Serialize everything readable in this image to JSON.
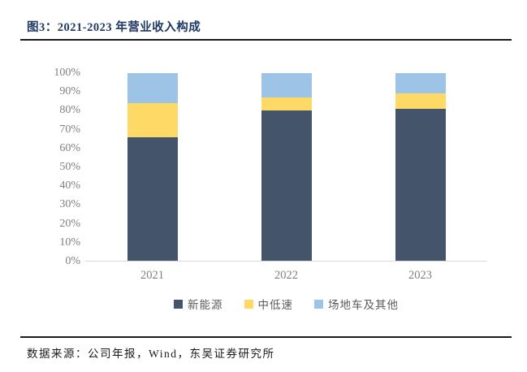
{
  "header": {
    "title": "图3：2021-2023 年营业收入构成"
  },
  "footer": {
    "source": "数据来源：公司年报，Wind，东吴证券研究所"
  },
  "chart_data": {
    "type": "bar",
    "stacked": true,
    "title": "图3：2021-2023 年营业收入构成",
    "categories": [
      "2021",
      "2022",
      "2023"
    ],
    "series": [
      {
        "name": "新能源",
        "color": "#44546A",
        "values": [
          66,
          80,
          81
        ]
      },
      {
        "name": "中低速",
        "color": "#FFD966",
        "values": [
          18,
          7,
          8
        ]
      },
      {
        "name": "场地车及其他",
        "color": "#9DC3E6",
        "values": [
          16,
          13,
          11
        ]
      }
    ],
    "xlabel": "",
    "ylabel": "",
    "ylim": [
      0,
      100
    ],
    "ytick_step": 10,
    "ytick_suffix": "%",
    "grid": false,
    "legend_position": "bottom"
  },
  "colors": {
    "title_text": "#1F3864",
    "axis_text": "#7f7f7f",
    "legend_text": "#595959",
    "rule": "#1a1a1a",
    "baseline": "#d9d9d9"
  }
}
